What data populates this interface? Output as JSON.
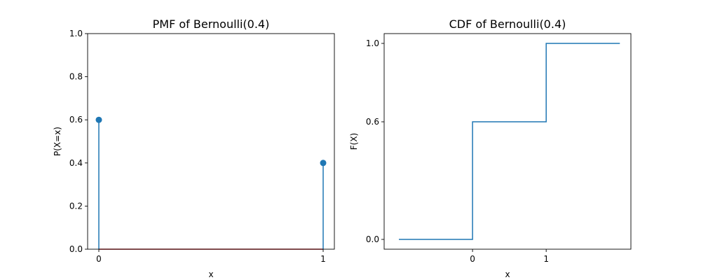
{
  "chart_data": [
    {
      "type": "stem",
      "title": "PMF of Bernoulli(0.4)",
      "xlabel": "x",
      "ylabel": "P(X=x)",
      "x": [
        0,
        1
      ],
      "y": [
        0.6,
        0.4
      ],
      "xlim": [
        -0.05,
        1.05
      ],
      "ylim": [
        0,
        1.0
      ],
      "xticks": [
        0,
        1
      ],
      "xtick_labels": [
        "0",
        "1"
      ],
      "yticks": [
        0,
        0.2,
        0.4,
        0.6,
        0.8,
        1.0
      ],
      "ytick_labels": [
        "0.0",
        "0.2",
        "0.4",
        "0.6",
        "0.8",
        "1.0"
      ],
      "grid": false,
      "color": "#1f77b4",
      "baseline_color": "#d62728"
    },
    {
      "type": "step",
      "title": "CDF of Bernoulli(0.4)",
      "xlabel": "x",
      "ylabel": "F(X)",
      "x": [
        -1,
        0,
        1,
        2
      ],
      "y": [
        0,
        0.6,
        1.0,
        1.0
      ],
      "xlim": [
        -1.2,
        2.15
      ],
      "ylim": [
        -0.05,
        1.05
      ],
      "xticks": [
        0,
        1
      ],
      "xtick_labels": [
        "0",
        "1"
      ],
      "yticks": [
        0,
        0.6,
        1.0
      ],
      "ytick_labels": [
        "0.0",
        "0.6",
        "1.0"
      ],
      "grid": false,
      "color": "#1f77b4"
    }
  ]
}
